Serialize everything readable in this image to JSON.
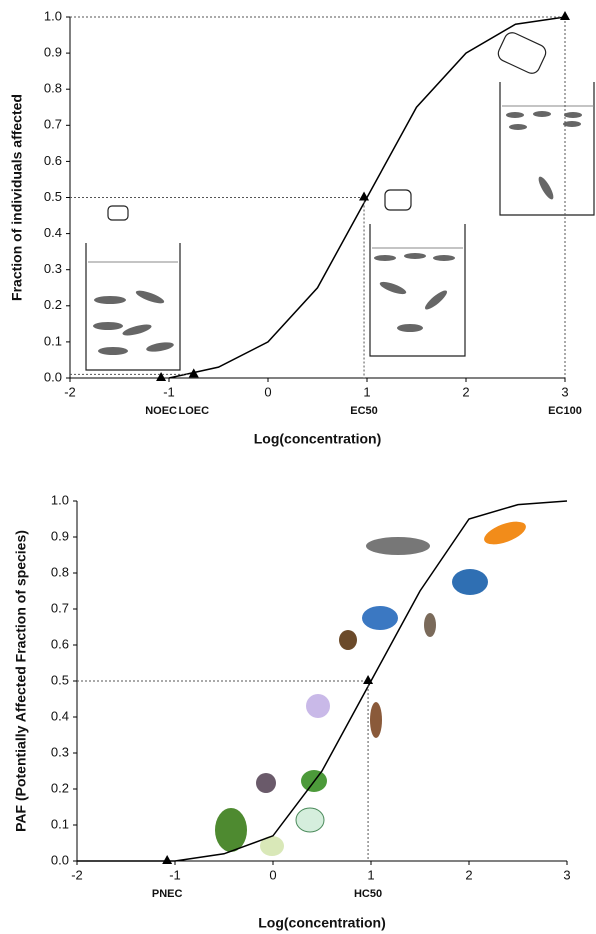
{
  "chart_data": [
    {
      "type": "line",
      "y_label": "Fraction of individuals affected",
      "x_label": "Log(concentration)",
      "xlim": [
        -2,
        3
      ],
      "xticks": [
        -2,
        -1,
        0,
        1,
        2,
        3
      ],
      "ylim": [
        0,
        1
      ],
      "yticks": [
        {
          "value": 0,
          "label": "0.0"
        },
        0.1,
        0.2,
        0.3,
        0.4,
        0.5,
        0.6,
        0.7,
        0.8,
        0.9,
        {
          "value": 1,
          "label": "1.0"
        }
      ],
      "x": [
        -1,
        -0.5,
        0,
        0.5,
        1,
        1.5,
        2,
        2.5,
        3
      ],
      "series": [
        {
          "color": "#000000",
          "values": [
            0.0,
            0.03,
            0.1,
            0.25,
            0.5,
            0.75,
            0.9,
            0.98,
            1.0
          ]
        }
      ],
      "markers": [
        {
          "label": "NOEC",
          "x": -1.08,
          "y": 0
        },
        {
          "label": "LOEC",
          "x": -0.75,
          "y": 0.01
        },
        {
          "label": "EC50",
          "x": 0.97,
          "y": 0.5
        },
        {
          "label": "EC100",
          "x": 3,
          "y": 1.0
        }
      ]
    },
    {
      "type": "line",
      "y_label": "PAF (Potentially Affected Fraction of species)",
      "x_label": "Log(concentration)",
      "xlim": [
        -2,
        3
      ],
      "xticks": [
        -2,
        -1,
        0,
        1,
        2,
        3
      ],
      "ylim": [
        0,
        1
      ],
      "yticks": [
        {
          "value": 0,
          "label": "0.0"
        },
        0.1,
        0.2,
        0.3,
        0.4,
        0.5,
        0.6,
        0.7,
        0.8,
        0.9,
        {
          "value": 1,
          "label": "1.0"
        }
      ],
      "x": [
        -2,
        -1,
        -0.5,
        0,
        0.5,
        1,
        1.5,
        2,
        2.5,
        3
      ],
      "series": [
        {
          "color": "#000000",
          "values": [
            0,
            0,
            0.02,
            0.07,
            0.25,
            0.5,
            0.75,
            0.95,
            0.99,
            1.0
          ]
        }
      ],
      "markers": [
        {
          "label": "PNEC",
          "x": -1.08,
          "y": 0
        },
        {
          "label": "HC50",
          "x": 0.97,
          "y": 0.5
        }
      ]
    }
  ]
}
